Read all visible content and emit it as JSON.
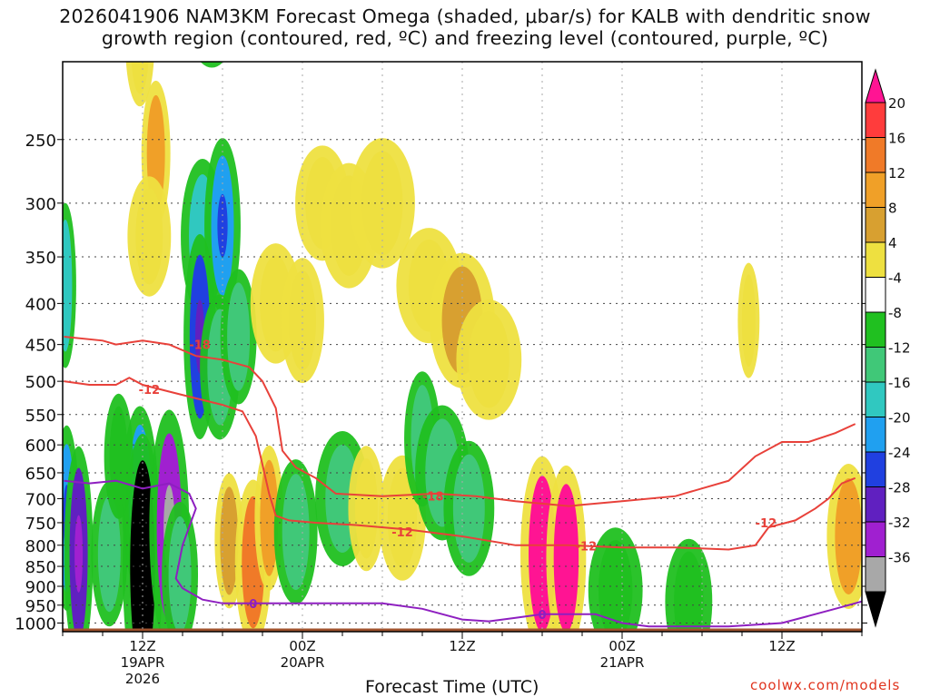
{
  "title": {
    "line1": "2026041906 NAM3KM Forecast Omega (shaded, μbar/s) for KALB with dendritic snow",
    "line2": "growth region (contoured, red, ºC) and freezing level (contoured, purple, ºC)"
  },
  "credit": "coolwx.com/models",
  "chart_data": {
    "type": "heatmap",
    "title": "2026041906 NAM3KM Forecast Omega (shaded, μbar/s) for KALB with dendritic snow growth region (contoured, red, ºC) and freezing level (contoured, purple, ºC)",
    "xlabel": "Forecast Time (UTC)",
    "ylabel": "",
    "x_range_hours": [
      6,
      66
    ],
    "y_range_hPa": [
      200,
      1025
    ],
    "y_scale": "log-pressure",
    "grid": true,
    "yticks": [
      250,
      300,
      350,
      400,
      450,
      500,
      550,
      600,
      650,
      700,
      750,
      800,
      850,
      900,
      950,
      1000
    ],
    "xticks": [
      {
        "hour": 12,
        "lines": [
          "12Z",
          "19APR",
          "2026"
        ]
      },
      {
        "hour": 24,
        "lines": [
          "00Z",
          "20APR"
        ]
      },
      {
        "hour": 36,
        "lines": [
          "12Z"
        ]
      },
      {
        "hour": 48,
        "lines": [
          "00Z",
          "21APR"
        ]
      },
      {
        "hour": 60,
        "lines": [
          "12Z"
        ]
      }
    ],
    "colorbar": {
      "labels": [
        "20",
        "16",
        "12",
        "8",
        "4",
        "-4",
        "-8",
        "-12",
        "-16",
        "-20",
        "-24",
        "-28",
        "-32",
        "-36"
      ],
      "colors": [
        "#ff1493",
        "#ff3c3c",
        "#f07a28",
        "#f0a028",
        "#d8a030",
        "#eee040",
        "#ffffff",
        "#20c020",
        "#40c878",
        "#30c8c0",
        "#20a0f0",
        "#2040e0",
        "#6020c0",
        "#a020d0",
        "#a8a8a8",
        "#000000"
      ]
    },
    "omega_cells": [
      {
        "t": 11.8,
        "p": 190,
        "w": 0.8,
        "v": 6
      },
      {
        "t": 13.0,
        "p": 260,
        "w": 0.8,
        "v": 10
      },
      {
        "t": 12.5,
        "p": 330,
        "w": 1.2,
        "v": 5
      },
      {
        "t": 17.2,
        "p": 170,
        "w": 1.5,
        "v": -6
      },
      {
        "t": 16.5,
        "p": 330,
        "w": 1.2,
        "v": -12
      },
      {
        "t": 18.0,
        "p": 320,
        "w": 1.0,
        "v": -16
      },
      {
        "t": 16.3,
        "p": 440,
        "w": 0.9,
        "v": -22
      },
      {
        "t": 17.8,
        "p": 480,
        "w": 1.1,
        "v": -10
      },
      {
        "t": 19.2,
        "p": 440,
        "w": 1.0,
        "v": -8
      },
      {
        "t": 6.2,
        "p": 380,
        "w": 0.6,
        "v": -14
      },
      {
        "t": 6.3,
        "p": 740,
        "w": 0.7,
        "v": -18
      },
      {
        "t": 7.2,
        "p": 820,
        "w": 0.8,
        "v": -24
      },
      {
        "t": 11.8,
        "p": 700,
        "w": 1.0,
        "v": -18
      },
      {
        "t": 12.0,
        "p": 850,
        "w": 1.1,
        "v": -34
      },
      {
        "t": 14.0,
        "p": 760,
        "w": 1.1,
        "v": -28
      },
      {
        "t": 14.8,
        "p": 870,
        "w": 1.0,
        "v": -10
      },
      {
        "t": 9.5,
        "p": 820,
        "w": 1.0,
        "v": -10
      },
      {
        "t": 10.2,
        "p": 620,
        "w": 0.8,
        "v": -6
      },
      {
        "t": 18.5,
        "p": 790,
        "w": 0.8,
        "v": 8
      },
      {
        "t": 20.3,
        "p": 840,
        "w": 1.0,
        "v": 14
      },
      {
        "t": 21.5,
        "p": 740,
        "w": 0.8,
        "v": 10
      },
      {
        "t": 22.0,
        "p": 400,
        "w": 1.4,
        "v": 5
      },
      {
        "t": 24.0,
        "p": 420,
        "w": 1.2,
        "v": 6
      },
      {
        "t": 23.5,
        "p": 770,
        "w": 1.2,
        "v": -10
      },
      {
        "t": 25.5,
        "p": 300,
        "w": 1.5,
        "v": 4
      },
      {
        "t": 27.5,
        "p": 320,
        "w": 1.6,
        "v": 6
      },
      {
        "t": 30.0,
        "p": 300,
        "w": 1.8,
        "v": 7
      },
      {
        "t": 27.0,
        "p": 700,
        "w": 1.5,
        "v": -8
      },
      {
        "t": 28.8,
        "p": 720,
        "w": 1.0,
        "v": 6
      },
      {
        "t": 31.5,
        "p": 740,
        "w": 1.3,
        "v": 6
      },
      {
        "t": 33.0,
        "p": 590,
        "w": 1.0,
        "v": -8
      },
      {
        "t": 34.5,
        "p": 650,
        "w": 1.5,
        "v": -8
      },
      {
        "t": 36.5,
        "p": 720,
        "w": 1.4,
        "v": -8
      },
      {
        "t": 33.5,
        "p": 380,
        "w": 1.8,
        "v": 4
      },
      {
        "t": 36.0,
        "p": 420,
        "w": 1.8,
        "v": 8
      },
      {
        "t": 38.0,
        "p": 470,
        "w": 1.8,
        "v": 5
      },
      {
        "t": 42.0,
        "p": 820,
        "w": 1.2,
        "v": 20
      },
      {
        "t": 43.8,
        "p": 830,
        "w": 1.1,
        "v": 18
      },
      {
        "t": 47.5,
        "p": 910,
        "w": 1.5,
        "v": -6
      },
      {
        "t": 53.0,
        "p": 940,
        "w": 1.3,
        "v": -6
      },
      {
        "t": 57.5,
        "p": 420,
        "w": 0.6,
        "v": 4
      },
      {
        "t": 65.0,
        "p": 780,
        "w": 1.2,
        "v": 10
      }
    ],
    "series": [
      {
        "name": "-18",
        "color": "#e8413a",
        "points": [
          [
            6.1,
            440
          ],
          [
            9,
            445
          ],
          [
            10,
            450
          ],
          [
            12,
            445
          ],
          [
            14,
            450
          ],
          [
            16,
            465
          ],
          [
            18,
            470
          ],
          [
            20,
            480
          ],
          [
            21,
            500
          ],
          [
            22,
            540
          ],
          [
            22.5,
            610
          ],
          [
            23.5,
            640
          ],
          [
            25,
            660
          ],
          [
            26.5,
            690
          ],
          [
            30,
            695
          ],
          [
            34,
            690
          ],
          [
            37,
            695
          ],
          [
            40,
            705
          ],
          [
            44,
            715
          ],
          [
            48,
            705
          ],
          [
            52,
            695
          ],
          [
            56,
            665
          ],
          [
            58,
            620
          ],
          [
            60,
            595
          ],
          [
            62,
            595
          ],
          [
            64,
            580
          ],
          [
            65.5,
            565
          ]
        ],
        "label": {
          "text": "-18",
          "t": 16.3,
          "p": 450
        }
      },
      {
        "name": "-18",
        "color": "#e8413a",
        "label": {
          "text": "-18",
          "t": 33.8,
          "p": 695
        }
      },
      {
        "name": "-12",
        "color": "#e8413a",
        "points": [
          [
            6.1,
            500
          ],
          [
            8,
            505
          ],
          [
            10,
            505
          ],
          [
            11,
            495
          ],
          [
            12,
            505
          ],
          [
            14,
            515
          ],
          [
            16,
            525
          ],
          [
            18,
            535
          ],
          [
            19.5,
            545
          ],
          [
            20.5,
            585
          ],
          [
            21.0,
            635
          ],
          [
            21.5,
            690
          ],
          [
            22,
            735
          ],
          [
            23,
            745
          ],
          [
            25,
            750
          ],
          [
            28,
            755
          ],
          [
            32,
            765
          ],
          [
            36,
            780
          ],
          [
            40,
            800
          ],
          [
            44,
            800
          ],
          [
            48,
            805
          ],
          [
            52,
            805
          ],
          [
            56,
            810
          ],
          [
            58,
            800
          ],
          [
            58.5,
            780
          ],
          [
            59,
            760
          ],
          [
            61,
            745
          ],
          [
            62.5,
            720
          ],
          [
            63.5,
            700
          ],
          [
            64.5,
            670
          ],
          [
            65.5,
            660
          ]
        ],
        "label": {
          "text": "-12",
          "t": 12.5,
          "p": 512
        }
      },
      {
        "name": "-12",
        "color": "#e8413a",
        "label": {
          "text": "-12",
          "t": 31.5,
          "p": 770
        }
      },
      {
        "name": "-12",
        "color": "#e8413a",
        "label": {
          "text": "-12",
          "t": 45.3,
          "p": 802
        }
      },
      {
        "name": "-12",
        "color": "#e8413a",
        "label": {
          "text": "-12",
          "t": 58.8,
          "p": 750
        }
      },
      {
        "name": "0",
        "color": "#8e1fc0",
        "points": [
          [
            6.1,
            665
          ],
          [
            8,
            670
          ],
          [
            10,
            665
          ],
          [
            12,
            680
          ],
          [
            14,
            670
          ],
          [
            15.5,
            690
          ],
          [
            16,
            720
          ],
          [
            15,
            800
          ],
          [
            14.5,
            880
          ],
          [
            15,
            905
          ],
          [
            16.5,
            935
          ],
          [
            18,
            945
          ],
          [
            22,
            945
          ],
          [
            26,
            945
          ],
          [
            30,
            945
          ],
          [
            33,
            960
          ],
          [
            36,
            990
          ],
          [
            38,
            995
          ],
          [
            40,
            985
          ],
          [
            42,
            975
          ],
          [
            44,
            975
          ],
          [
            46,
            975
          ],
          [
            48,
            1000
          ],
          [
            50,
            1010
          ],
          [
            56,
            1010
          ],
          [
            60,
            1000
          ],
          [
            62,
            980
          ],
          [
            64,
            960
          ],
          [
            66,
            940
          ]
        ],
        "label": {
          "text": "0",
          "t": 20.3,
          "p": 945
        }
      },
      {
        "name": "0",
        "color": "#8e1fc0",
        "label": {
          "text": "0",
          "t": 42.0,
          "p": 975
        }
      }
    ]
  }
}
